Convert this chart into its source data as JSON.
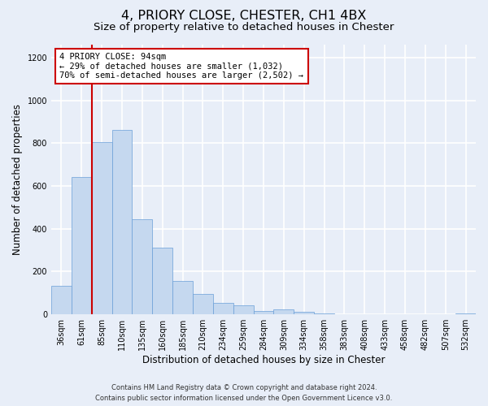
{
  "title": "4, PRIORY CLOSE, CHESTER, CH1 4BX",
  "subtitle": "Size of property relative to detached houses in Chester",
  "xlabel": "Distribution of detached houses by size in Chester",
  "ylabel": "Number of detached properties",
  "bin_labels": [
    "36sqm",
    "61sqm",
    "85sqm",
    "110sqm",
    "135sqm",
    "160sqm",
    "185sqm",
    "210sqm",
    "234sqm",
    "259sqm",
    "284sqm",
    "309sqm",
    "334sqm",
    "358sqm",
    "383sqm",
    "408sqm",
    "433sqm",
    "458sqm",
    "482sqm",
    "507sqm",
    "532sqm"
  ],
  "bar_heights": [
    135,
    640,
    805,
    860,
    445,
    310,
    155,
    95,
    52,
    42,
    15,
    22,
    12,
    5,
    2,
    1,
    0,
    0,
    0,
    0,
    3
  ],
  "bar_color": "#c5d8ef",
  "bar_edge_color": "#6a9fd8",
  "vline_color": "#cc0000",
  "annotation_text": "4 PRIORY CLOSE: 94sqm\n← 29% of detached houses are smaller (1,032)\n70% of semi-detached houses are larger (2,502) →",
  "annotation_box_color": "#ffffff",
  "annotation_box_edge_color": "#cc0000",
  "ylim": [
    0,
    1260
  ],
  "yticks": [
    0,
    200,
    400,
    600,
    800,
    1000,
    1200
  ],
  "footer_line1": "Contains HM Land Registry data © Crown copyright and database right 2024.",
  "footer_line2": "Contains public sector information licensed under the Open Government Licence v3.0.",
  "bg_color": "#e8eef8",
  "plot_bg_color": "#e8eef8",
  "grid_color": "#ffffff",
  "title_fontsize": 11.5,
  "subtitle_fontsize": 9.5,
  "tick_fontsize": 7,
  "axis_label_fontsize": 8.5,
  "footer_fontsize": 6,
  "annotation_fontsize": 7.5
}
